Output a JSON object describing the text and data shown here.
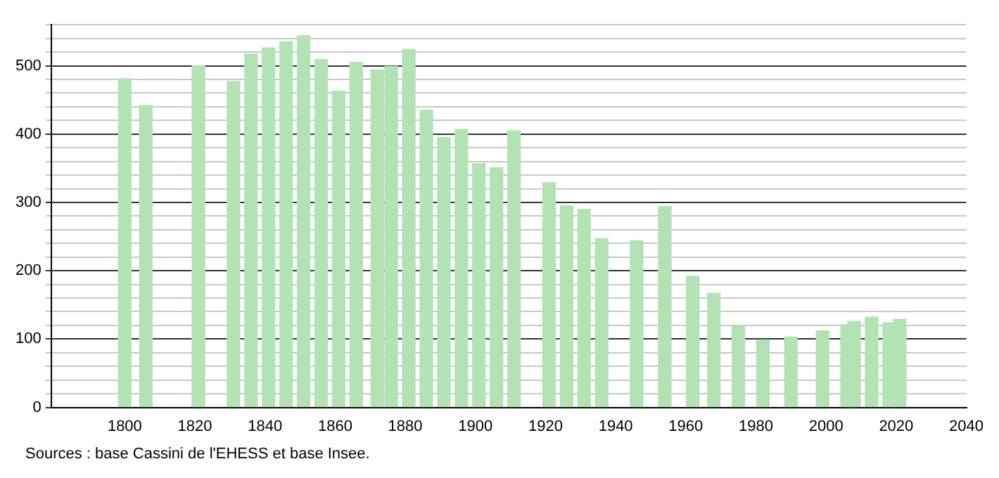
{
  "chart_data": {
    "type": "bar",
    "x": [
      1800,
      1806,
      1821,
      1831,
      1836,
      1841,
      1846,
      1851,
      1856,
      1861,
      1866,
      1872,
      1876,
      1881,
      1886,
      1891,
      1896,
      1901,
      1906,
      1911,
      1921,
      1926,
      1931,
      1936,
      1946,
      1954,
      1962,
      1968,
      1975,
      1982,
      1990,
      1999,
      2006,
      2008,
      2013,
      2018,
      2021
    ],
    "values": [
      481,
      442,
      500,
      477,
      517,
      526,
      535,
      544,
      509,
      463,
      505,
      494,
      499,
      524,
      435,
      395,
      407,
      357,
      351,
      405,
      329,
      295,
      290,
      247,
      244,
      294,
      192,
      167,
      120,
      99,
      103,
      112,
      121,
      126,
      132,
      124,
      129
    ],
    "color": "#b3e3b5",
    "xlim": [
      1779,
      2040
    ],
    "xticks": [
      1800,
      1820,
      1840,
      1860,
      1880,
      1900,
      1920,
      1940,
      1960,
      1980,
      2000,
      2020,
      2040
    ],
    "ylim": [
      0,
      560
    ],
    "yticks": [
      0,
      {
        "value": 20,
        "label": null
      },
      {
        "value": 40,
        "label": null
      },
      {
        "value": 60,
        "label": null
      },
      {
        "value": 80,
        "label": null
      },
      100,
      {
        "value": 120,
        "label": null
      },
      {
        "value": 140,
        "label": null
      },
      {
        "value": 160,
        "label": null
      },
      {
        "value": 180,
        "label": null
      },
      200,
      {
        "value": 220,
        "label": null
      },
      {
        "value": 240,
        "label": null
      },
      {
        "value": 260,
        "label": null
      },
      {
        "value": 280,
        "label": null
      },
      300,
      {
        "value": 320,
        "label": null
      },
      {
        "value": 340,
        "label": null
      },
      {
        "value": 360,
        "label": null
      },
      {
        "value": 380,
        "label": null
      },
      400,
      {
        "value": 420,
        "label": null
      },
      {
        "value": 440,
        "label": null
      },
      {
        "value": 460,
        "label": null
      },
      {
        "value": 480,
        "label": null
      },
      500,
      {
        "value": 520,
        "label": null
      },
      {
        "value": 540,
        "label": null
      },
      {
        "value": 560,
        "label": null
      }
    ],
    "grid": "y",
    "legend": false,
    "annotations": [
      "Sources : base Cassini de l'EHESS et base Insee."
    ]
  }
}
